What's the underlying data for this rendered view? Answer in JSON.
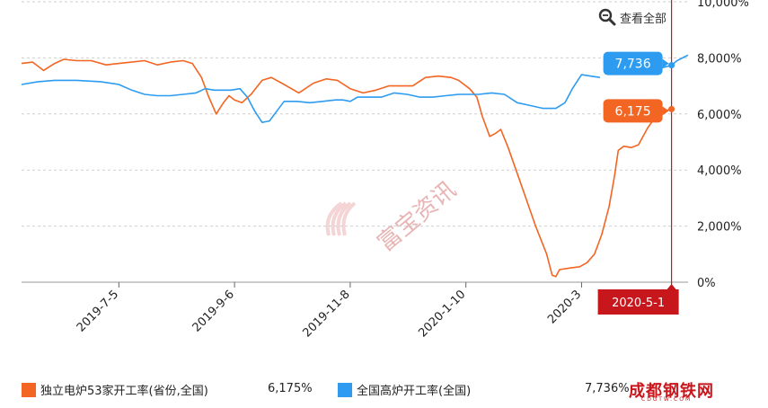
{
  "toolbar": {
    "view_all_label": "查看全部",
    "icon": "zoom-icon"
  },
  "colors": {
    "orange": "#f26522",
    "blue": "#2d9cf0",
    "marker_red": "#c8161d",
    "grid": "#cfcfcf"
  },
  "watermark": {
    "text": "富宝资讯",
    "site": "成都钢铁网",
    "site_sub": "CDGTW.COM"
  },
  "cursor": {
    "date_label": "2020-5-1"
  },
  "legend": [
    {
      "label": "独立电炉53家开工率(省份,全国)",
      "value": "6,175%"
    },
    {
      "label": "全国高炉开工率(全国)",
      "value": "7,736%"
    }
  ],
  "chart_data": {
    "type": "line",
    "y_ticks": [
      "0%",
      "2,000%",
      "4,000%",
      "6,000%",
      "8,000%",
      "10,000%"
    ],
    "ylim": [
      0,
      10000
    ],
    "x_ticks": [
      "2019-7-5",
      "2019-9-6",
      "2019-11-8",
      "2020-1-10",
      "2020-3"
    ],
    "x_tick_dates": [
      "2019-07-05",
      "2019-09-06",
      "2019-11-08",
      "2020-01-10",
      "2020-03-13"
    ],
    "xlim": [
      "2019-05-13",
      "2020-05-10"
    ],
    "cursor_date": "2020-05-01",
    "series": [
      {
        "name": "独立电炉53家开工率(省份,全国)",
        "last_label": "6,175",
        "points": [
          [
            "2019-05-13",
            7800
          ],
          [
            "2019-05-19",
            7850
          ],
          [
            "2019-05-25",
            7550
          ],
          [
            "2019-05-31",
            7800
          ],
          [
            "2019-06-05",
            7950
          ],
          [
            "2019-06-12",
            7900
          ],
          [
            "2019-06-20",
            7900
          ],
          [
            "2019-06-28",
            7750
          ],
          [
            "2019-07-05",
            7800
          ],
          [
            "2019-07-12",
            7850
          ],
          [
            "2019-07-19",
            7900
          ],
          [
            "2019-07-26",
            7750
          ],
          [
            "2019-08-02",
            7850
          ],
          [
            "2019-08-09",
            7900
          ],
          [
            "2019-08-14",
            7800
          ],
          [
            "2019-08-19",
            7300
          ],
          [
            "2019-08-23",
            6600
          ],
          [
            "2019-08-27",
            6000
          ],
          [
            "2019-08-31",
            6400
          ],
          [
            "2019-09-03",
            6650
          ],
          [
            "2019-09-06",
            6500
          ],
          [
            "2019-09-10",
            6400
          ],
          [
            "2019-09-15",
            6700
          ],
          [
            "2019-09-21",
            7200
          ],
          [
            "2019-09-26",
            7300
          ],
          [
            "2019-10-03",
            7050
          ],
          [
            "2019-10-11",
            6750
          ],
          [
            "2019-10-19",
            7100
          ],
          [
            "2019-10-26",
            7250
          ],
          [
            "2019-11-01",
            7200
          ],
          [
            "2019-11-08",
            6900
          ],
          [
            "2019-11-15",
            6750
          ],
          [
            "2019-11-22",
            6850
          ],
          [
            "2019-11-29",
            7000
          ],
          [
            "2019-12-05",
            7000
          ],
          [
            "2019-12-12",
            7000
          ],
          [
            "2019-12-19",
            7300
          ],
          [
            "2019-12-26",
            7350
          ],
          [
            "2020-01-02",
            7300
          ],
          [
            "2020-01-06",
            7200
          ],
          [
            "2020-01-12",
            6900
          ],
          [
            "2020-01-16",
            6600
          ],
          [
            "2020-01-19",
            5900
          ],
          [
            "2020-01-23",
            5200
          ],
          [
            "2020-01-26",
            5300
          ],
          [
            "2020-01-29",
            5450
          ],
          [
            "2020-02-02",
            4800
          ],
          [
            "2020-02-09",
            3500
          ],
          [
            "2020-02-17",
            2000
          ],
          [
            "2020-02-23",
            1000
          ],
          [
            "2020-02-26",
            250
          ],
          [
            "2020-02-28",
            200
          ],
          [
            "2020-03-01",
            450
          ],
          [
            "2020-03-06",
            500
          ],
          [
            "2020-03-12",
            550
          ],
          [
            "2020-03-16",
            700
          ],
          [
            "2020-03-20",
            1000
          ],
          [
            "2020-03-24",
            1700
          ],
          [
            "2020-03-28",
            2700
          ],
          [
            "2020-03-31",
            3800
          ],
          [
            "2020-04-02",
            4700
          ],
          [
            "2020-04-05",
            4850
          ],
          [
            "2020-04-09",
            4800
          ],
          [
            "2020-04-13",
            4900
          ],
          [
            "2020-04-18",
            5500
          ],
          [
            "2020-04-24",
            6050
          ],
          [
            "2020-05-01",
            6175
          ]
        ]
      },
      {
        "name": "全国高炉开工率(全国)",
        "last_label": "7,736",
        "points": [
          [
            "2019-05-13",
            7050
          ],
          [
            "2019-05-22",
            7150
          ],
          [
            "2019-05-31",
            7200
          ],
          [
            "2019-06-12",
            7200
          ],
          [
            "2019-06-25",
            7150
          ],
          [
            "2019-07-05",
            7050
          ],
          [
            "2019-07-12",
            6850
          ],
          [
            "2019-07-19",
            6700
          ],
          [
            "2019-07-26",
            6650
          ],
          [
            "2019-08-02",
            6650
          ],
          [
            "2019-08-09",
            6700
          ],
          [
            "2019-08-16",
            6750
          ],
          [
            "2019-08-21",
            6900
          ],
          [
            "2019-08-26",
            6850
          ],
          [
            "2019-09-04",
            6850
          ],
          [
            "2019-09-09",
            6900
          ],
          [
            "2019-09-13",
            6600
          ],
          [
            "2019-09-17",
            6100
          ],
          [
            "2019-09-21",
            5700
          ],
          [
            "2019-09-25",
            5750
          ],
          [
            "2019-09-29",
            6100
          ],
          [
            "2019-10-03",
            6450
          ],
          [
            "2019-10-10",
            6450
          ],
          [
            "2019-10-17",
            6400
          ],
          [
            "2019-10-24",
            6450
          ],
          [
            "2019-10-31",
            6500
          ],
          [
            "2019-11-04",
            6500
          ],
          [
            "2019-11-08",
            6450
          ],
          [
            "2019-11-12",
            6600
          ],
          [
            "2019-11-18",
            6600
          ],
          [
            "2019-11-25",
            6600
          ],
          [
            "2019-12-02",
            6750
          ],
          [
            "2019-12-09",
            6700
          ],
          [
            "2019-12-16",
            6600
          ],
          [
            "2019-12-23",
            6600
          ],
          [
            "2019-12-30",
            6650
          ],
          [
            "2020-01-06",
            6700
          ],
          [
            "2020-01-10",
            6700
          ],
          [
            "2020-01-17",
            6700
          ],
          [
            "2020-01-24",
            6750
          ],
          [
            "2020-01-31",
            6700
          ],
          [
            "2020-02-07",
            6400
          ],
          [
            "2020-02-14",
            6300
          ],
          [
            "2020-02-21",
            6200
          ],
          [
            "2020-02-28",
            6200
          ],
          [
            "2020-03-04",
            6400
          ],
          [
            "2020-03-08",
            6900
          ],
          [
            "2020-03-13",
            7400
          ],
          [
            "2020-03-18",
            7350
          ],
          [
            "2020-03-23",
            7300
          ]
        ],
        "tail_points": [
          [
            "2020-04-26",
            7650
          ],
          [
            "2020-05-01",
            7736
          ],
          [
            "2020-05-04",
            7900
          ],
          [
            "2020-05-10",
            8100
          ]
        ]
      }
    ]
  }
}
